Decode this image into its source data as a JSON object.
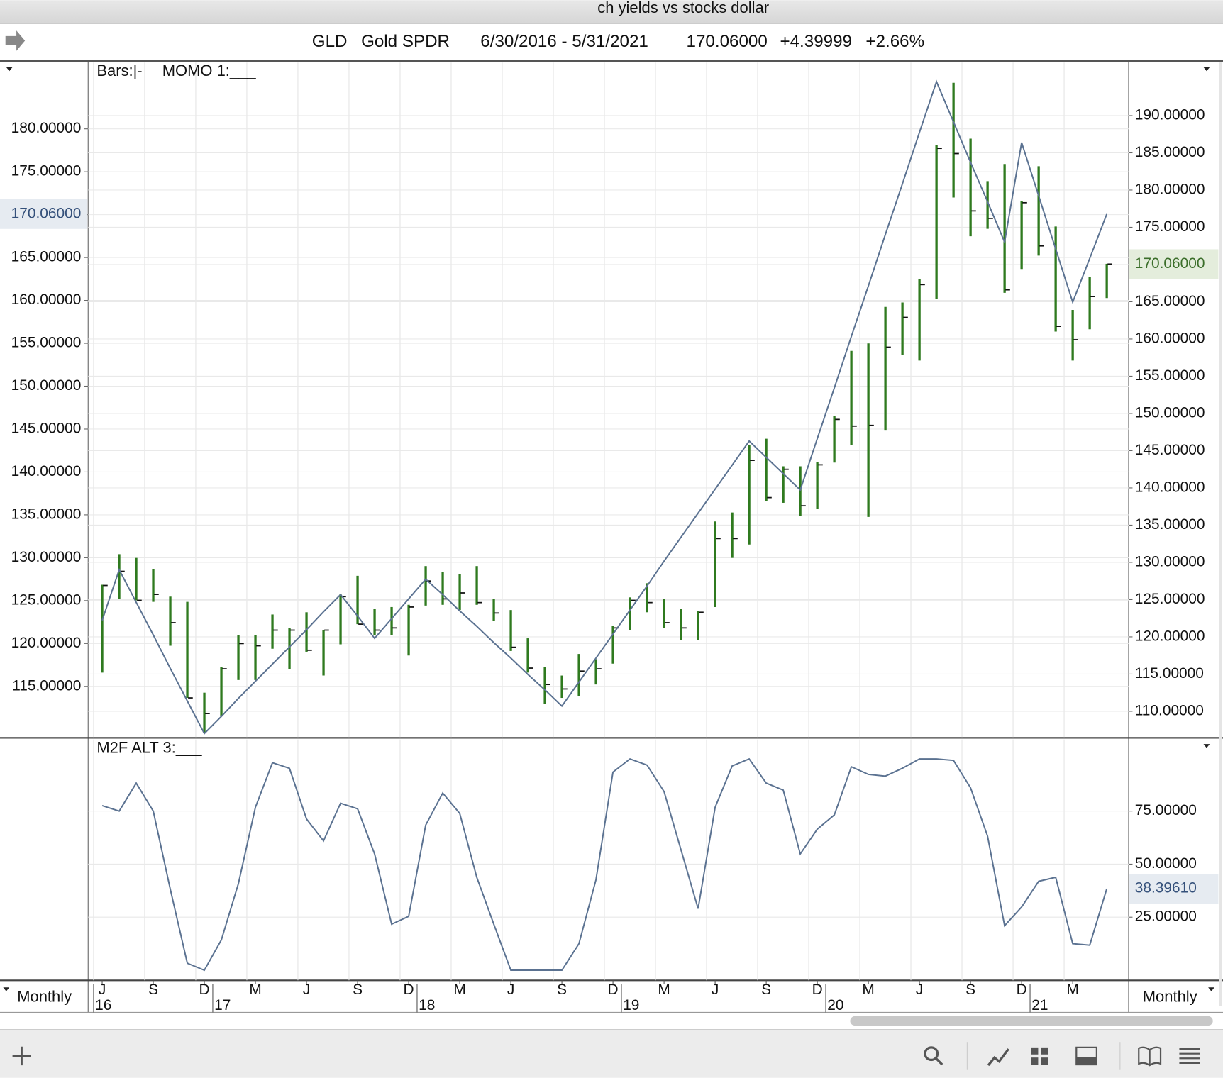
{
  "window": {
    "title": "ch yields vs stocks dollar"
  },
  "header": {
    "symbol": "GLD",
    "name": "Gold SPDR",
    "range": "6/30/2016 - 5/31/2021",
    "last": "170.06000",
    "change": "+4.39999",
    "change_pct": "+2.66%"
  },
  "time_axis": {
    "categories": [
      "J",
      null,
      null,
      "S",
      null,
      null,
      "D",
      null,
      null,
      "M",
      null,
      null,
      "J",
      null,
      null,
      "S",
      null,
      null,
      "D",
      null,
      null,
      "M",
      null,
      null,
      "J",
      null,
      null,
      "S",
      null,
      null,
      "D",
      null,
      null,
      "M",
      null,
      null,
      "J",
      null,
      null,
      "S",
      null,
      null,
      "D",
      null,
      null,
      "M",
      null,
      null,
      "J",
      null,
      null,
      "S",
      null,
      null,
      "D",
      null,
      null,
      "M",
      null,
      null
    ],
    "years": [
      "16",
      null,
      null,
      null,
      null,
      null,
      null,
      "17",
      null,
      null,
      null,
      null,
      null,
      null,
      null,
      null,
      null,
      null,
      null,
      "18",
      null,
      null,
      null,
      null,
      null,
      null,
      null,
      null,
      null,
      null,
      null,
      "19",
      null,
      null,
      null,
      null,
      null,
      null,
      null,
      null,
      null,
      null,
      null,
      "20",
      null,
      null,
      null,
      null,
      null,
      null,
      null,
      null,
      null,
      null,
      null,
      "21",
      null,
      null,
      null,
      null
    ],
    "period_left": "Monthly",
    "period_right": "Monthly"
  },
  "chart_data": [
    {
      "type": "hlc",
      "grid": true,
      "ylim": [
        109.09,
        187.73
      ],
      "yticks": [
        {
          "value": 115,
          "label": "115.00000"
        },
        {
          "value": 120,
          "label": "120.00000"
        },
        {
          "value": 125,
          "label": "125.00000"
        },
        {
          "value": 130,
          "label": "130.00000"
        },
        {
          "value": 135,
          "label": "135.00000"
        },
        {
          "value": 140,
          "label": "140.00000"
        },
        {
          "value": 145,
          "label": "145.00000"
        },
        {
          "value": 150,
          "label": "150.00000"
        },
        {
          "value": 155,
          "label": "155.00000"
        },
        {
          "value": 160,
          "label": "160.00000"
        },
        {
          "value": 165,
          "label": "165.00000"
        },
        {
          "value": 170,
          "label": "170.00000"
        },
        {
          "value": 175,
          "label": "175.00000"
        },
        {
          "value": 180,
          "label": "180.00000"
        }
      ],
      "y_current": {
        "value": 170.06,
        "label": "170.06000"
      },
      "y2lim": [
        106.54,
        197.12
      ],
      "y2ticks": [
        {
          "value": 110,
          "label": "110.00000"
        },
        {
          "value": 115,
          "label": "115.00000"
        },
        {
          "value": 120,
          "label": "120.00000"
        },
        {
          "value": 125,
          "label": "125.00000"
        },
        {
          "value": 130,
          "label": "130.00000"
        },
        {
          "value": 135,
          "label": "135.00000"
        },
        {
          "value": 140,
          "label": "140.00000"
        },
        {
          "value": 145,
          "label": "145.00000"
        },
        {
          "value": 150,
          "label": "150.00000"
        },
        {
          "value": 155,
          "label": "155.00000"
        },
        {
          "value": 160,
          "label": "160.00000"
        },
        {
          "value": 165,
          "label": "165.00000"
        },
        {
          "value": 170,
          "label": "170.00000"
        },
        {
          "value": 175,
          "label": "175.00000"
        },
        {
          "value": 180,
          "label": "180.00000"
        },
        {
          "value": 185,
          "label": "185.00000"
        },
        {
          "value": 190,
          "label": "190.00000"
        }
      ],
      "y2_current": {
        "value": 170.06,
        "label": "170.06000"
      },
      "series": [
        {
          "name": "Bars:|-",
          "type": "hlc",
          "axis": "y2",
          "color": "#2f7a1f",
          "high": [
            127.0,
            131.1,
            130.6,
            129.1,
            125.4,
            124.7,
            112.5,
            116.0,
            120.2,
            120.2,
            123.0,
            121.2,
            123.3,
            120.9,
            125.7,
            128.2,
            123.8,
            124.0,
            124.3,
            129.5,
            128.7,
            128.4,
            129.5,
            125.1,
            123.6,
            119.8,
            115.9,
            114.8,
            117.7,
            117.0,
            121.5,
            125.3,
            127.2,
            125.1,
            123.8,
            123.5,
            135.5,
            136.7,
            145.8,
            146.6,
            142.9,
            142.9,
            143.5,
            149.7,
            158.4,
            159.4,
            164.3,
            164.9,
            168.0,
            186.0,
            194.4,
            186.9,
            181.2,
            183.5,
            178.5,
            183.2,
            175.1,
            163.9,
            168.3,
            170.1
          ],
          "low": [
            115.2,
            125.1,
            124.9,
            124.7,
            118.8,
            111.8,
            107.1,
            109.4,
            114.2,
            114.2,
            118.4,
            115.7,
            118.0,
            114.8,
            119.0,
            121.7,
            120.2,
            120.2,
            117.5,
            124.2,
            124.3,
            123.6,
            124.3,
            122.1,
            118.1,
            115.2,
            111.0,
            111.8,
            112.0,
            113.6,
            116.4,
            120.9,
            123.3,
            121.2,
            119.6,
            119.6,
            124.0,
            130.6,
            132.4,
            138.2,
            138.0,
            136.2,
            137.2,
            143.4,
            145.8,
            136.1,
            147.7,
            157.9,
            157.1,
            165.4,
            179.0,
            173.8,
            174.8,
            166.2,
            169.4,
            171.2,
            161.0,
            157.1,
            161.3,
            165.5
          ],
          "close": [
            126.9,
            128.8,
            124.9,
            125.7,
            121.9,
            111.8,
            109.7,
            115.7,
            119.1,
            118.8,
            120.9,
            120.9,
            118.2,
            120.9,
            125.4,
            121.7,
            120.9,
            121.2,
            124.0,
            127.5,
            125.1,
            125.9,
            124.6,
            123.2,
            118.6,
            115.8,
            113.6,
            113.0,
            115.4,
            115.7,
            121.2,
            124.9,
            124.6,
            121.9,
            121.2,
            123.3,
            133.2,
            133.2,
            143.7,
            138.7,
            142.5,
            137.6,
            143.1,
            149.2,
            148.3,
            148.4,
            158.9,
            162.9,
            167.3,
            185.6,
            184.9,
            177.2,
            176.2,
            166.6,
            178.3,
            172.5,
            161.7,
            159.9,
            165.7,
            170.06
          ]
        },
        {
          "name": "MOMO 1:___",
          "type": "line",
          "axis": "y",
          "color": "#5b7291",
          "values": [
            122.7,
            128.6,
            124.8,
            121.0,
            117.1,
            113.3,
            109.5,
            111.5,
            113.6,
            115.6,
            117.6,
            119.6,
            121.6,
            123.7,
            125.7,
            123.2,
            120.6,
            122.9,
            125.2,
            127.5,
            125.7,
            123.8,
            122.0,
            120.1,
            118.3,
            116.4,
            114.6,
            112.7,
            115.5,
            118.3,
            121.1,
            123.9,
            126.7,
            129.6,
            132.4,
            135.2,
            138.0,
            140.8,
            143.6,
            141.7,
            139.8,
            137.9,
            143.9,
            149.8,
            155.8,
            161.7,
            167.7,
            173.6,
            179.6,
            185.5,
            180.8,
            176.1,
            171.5,
            166.8,
            178.4,
            172.2,
            166.0,
            159.8,
            164.9,
            170.06
          ]
        }
      ]
    },
    {
      "type": "line",
      "grid": true,
      "y2lim": [
        -4.78,
        108.8
      ],
      "y2ticks": [
        {
          "value": 25,
          "label": "25.00000"
        },
        {
          "value": 50,
          "label": "50.00000"
        },
        {
          "value": 75,
          "label": "75.00000"
        }
      ],
      "y2_current": {
        "value": 38.3961,
        "label": "38.39610"
      },
      "series": [
        {
          "name": "M2F ALT 3:___",
          "type": "line",
          "axis": "y2",
          "color": "#5b7291",
          "values": [
            77.6,
            75,
            88.2,
            75,
            38.2,
            3.3,
            0,
            14.3,
            40.8,
            76.8,
            97.8,
            95.2,
            71.3,
            61.0,
            78.7,
            76.1,
            54.8,
            21.7,
            25.4,
            68.4,
            83.5,
            73.9,
            43.8,
            21.7,
            0,
            0,
            0,
            0,
            12.5,
            42.6,
            93.4,
            99.6,
            96.7,
            84.2,
            56.6,
            29.0,
            76.8,
            96.3,
            99.6,
            88.2,
            84.9,
            54.8,
            66.5,
            73.2,
            95.9,
            92.3,
            91.5,
            95.2,
            99.6,
            99.6,
            98.9,
            86.0,
            63.2,
            21.0,
            29.8,
            41.9,
            43.8,
            12.5,
            11.8,
            38.3961
          ]
        }
      ]
    }
  ]
}
